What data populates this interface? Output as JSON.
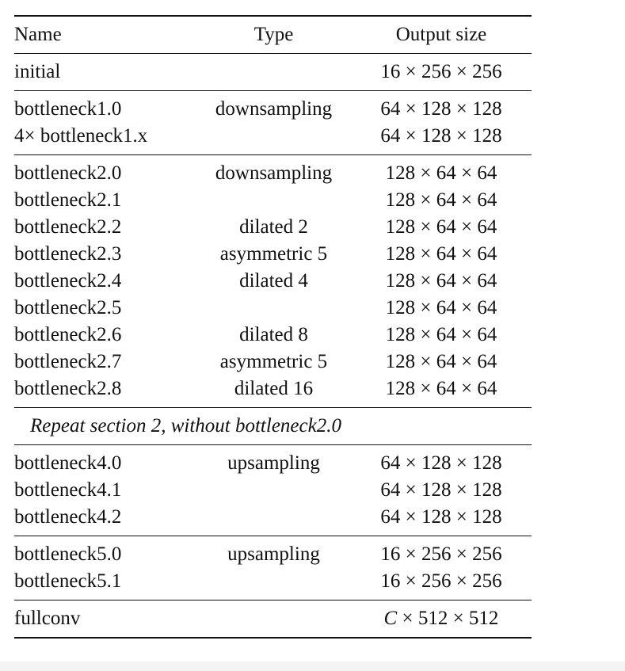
{
  "header": {
    "name": "Name",
    "type": "Type",
    "output": "Output size"
  },
  "sections": [
    [
      {
        "name": "initial",
        "type": "",
        "output": "16 × 256 × 256"
      }
    ],
    [
      {
        "name": "bottleneck1.0",
        "type": "downsampling",
        "output": "64 × 128 × 128"
      },
      {
        "name": "4× bottleneck1.x",
        "type": "",
        "output": "64 × 128 × 128"
      }
    ],
    [
      {
        "name": "bottleneck2.0",
        "type": "downsampling",
        "output": "128 × 64 × 64"
      },
      {
        "name": "bottleneck2.1",
        "type": "",
        "output": "128 × 64 × 64"
      },
      {
        "name": "bottleneck2.2",
        "type": "dilated 2",
        "output": "128 × 64 × 64"
      },
      {
        "name": "bottleneck2.3",
        "type": "asymmetric 5",
        "output": "128 × 64 × 64"
      },
      {
        "name": "bottleneck2.4",
        "type": "dilated 4",
        "output": "128 × 64 × 64"
      },
      {
        "name": "bottleneck2.5",
        "type": "",
        "output": "128 × 64 × 64"
      },
      {
        "name": "bottleneck2.6",
        "type": "dilated 8",
        "output": "128 × 64 × 64"
      },
      {
        "name": "bottleneck2.7",
        "type": "asymmetric 5",
        "output": "128 × 64 × 64"
      },
      {
        "name": "bottleneck2.8",
        "type": "dilated 16",
        "output": "128 × 64 × 64"
      }
    ],
    [
      {
        "note": "Repeat section 2, without bottleneck2.0"
      }
    ],
    [
      {
        "name": "bottleneck4.0",
        "type": "upsampling",
        "output": "64 × 128 × 128"
      },
      {
        "name": "bottleneck4.1",
        "type": "",
        "output": "64 × 128 × 128"
      },
      {
        "name": "bottleneck4.2",
        "type": "",
        "output": "64 × 128 × 128"
      }
    ],
    [
      {
        "name": "bottleneck5.0",
        "type": "upsampling",
        "output": "16 × 256 × 256"
      },
      {
        "name": "bottleneck5.1",
        "type": "",
        "output": "16 × 256 × 256"
      }
    ],
    [
      {
        "name": "fullconv",
        "type": "",
        "output": "C × 512 × 512",
        "italic_prefix": "C"
      }
    ]
  ]
}
